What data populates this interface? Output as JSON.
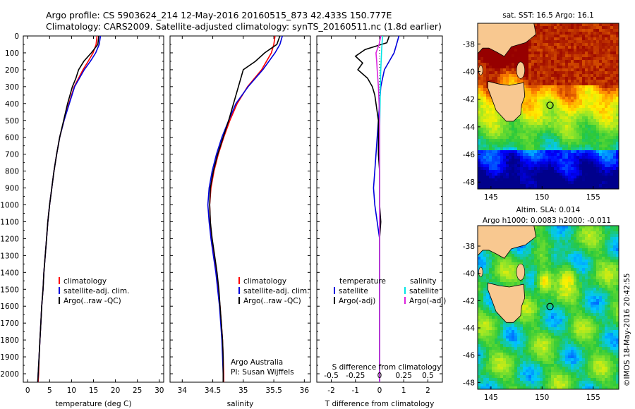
{
  "header": {
    "line1": "Argo profile: CS 5903624_214 12-May-2016 20160515_873 42.433S 150.777E",
    "line2": "Climatology: CARS2009. Satellite-adjusted climatology: synTS_20160511.nc (1.8d earlier)"
  },
  "side_stamp": "©IMOS 18-May-2016 20:42:55",
  "colors": {
    "climatology": "#ff0000",
    "satellite": "#0000dd",
    "argo": "#000000",
    "sat_salinity": "#00e5e5",
    "argo_adj_salinity": "#dd22dd"
  },
  "chart_data": [
    {
      "type": "line",
      "panel": "temperature",
      "xlabel": "temperature (deg C)",
      "xlim": [
        -1,
        31
      ],
      "ylim": [
        2050,
        0
      ],
      "xticks": [
        "0",
        "5",
        "10",
        "15",
        "20",
        "25",
        "30"
      ],
      "yticks": [
        "0",
        "100",
        "200",
        "300",
        "400",
        "500",
        "600",
        "700",
        "800",
        "900",
        "1000",
        "1100",
        "1200",
        "1300",
        "1400",
        "1500",
        "1600",
        "1700",
        "1800",
        "1900",
        "2000"
      ],
      "legend": [
        "climatology",
        "satellite-adj. clim.",
        "Argo(..raw -QC)"
      ],
      "series": [
        {
          "name": "climatology",
          "color": "#ff0000",
          "depth": [
            0,
            50,
            100,
            150,
            200,
            300,
            400,
            500,
            600,
            700,
            800,
            900,
            1000,
            1100,
            1200,
            1300,
            1400,
            1500,
            1600,
            1700,
            1800,
            1900,
            2000,
            2050
          ],
          "value": [
            15.8,
            15.6,
            14.9,
            13.8,
            12.6,
            10.6,
            9.4,
            8.3,
            7.3,
            6.6,
            6.0,
            5.5,
            5.0,
            4.6,
            4.3,
            4.0,
            3.7,
            3.5,
            3.2,
            3.0,
            2.8,
            2.6,
            2.5,
            2.4
          ]
        },
        {
          "name": "satellite-adj. clim.",
          "color": "#0000dd",
          "depth": [
            0,
            50,
            100,
            150,
            200,
            300,
            400,
            500,
            600,
            700,
            800,
            900,
            1000,
            1100,
            1200,
            1300,
            1400,
            1500,
            1600,
            1700,
            1800,
            1900,
            2000,
            2050
          ],
          "value": [
            16.6,
            16.3,
            15.5,
            14.3,
            12.9,
            10.7,
            9.5,
            8.3,
            7.3,
            6.6,
            6.0,
            5.5,
            5.0,
            4.6,
            4.3,
            4.0,
            3.7,
            3.5,
            3.2,
            3.0,
            2.8,
            2.6,
            2.4,
            2.3
          ]
        },
        {
          "name": "Argo(..raw -QC)",
          "color": "#000000",
          "depth": [
            0,
            50,
            100,
            150,
            200,
            250,
            300,
            400,
            500,
            600,
            700,
            800,
            900,
            1000,
            1100,
            1200,
            1300,
            1400,
            1500,
            1600,
            1700,
            1800,
            1900,
            2000,
            2050
          ],
          "value": [
            16.2,
            16.0,
            14.5,
            12.8,
            11.6,
            11.0,
            10.2,
            9.1,
            8.2,
            7.3,
            6.6,
            6.0,
            5.5,
            5.0,
            4.6,
            4.3,
            4.0,
            3.7,
            3.5,
            3.2,
            3.0,
            2.8,
            2.6,
            2.4,
            2.3
          ]
        }
      ]
    },
    {
      "type": "line",
      "panel": "salinity",
      "xlabel": "salinity",
      "xlim": [
        33.8,
        36.1
      ],
      "ylim": [
        2050,
        0
      ],
      "xticks": [
        "34",
        "34.5",
        "35",
        "35.5",
        "36"
      ],
      "legend": [
        "climatology",
        "satellite-adj. clim.",
        "Argo(..raw -QC)"
      ],
      "annotation": [
        "Argo Australia",
        "PI: Susan Wijffels"
      ],
      "series": [
        {
          "name": "climatology",
          "color": "#ff0000",
          "depth": [
            0,
            50,
            100,
            200,
            300,
            400,
            500,
            600,
            700,
            800,
            900,
            1000,
            1100,
            1200,
            1300,
            1400,
            1500,
            1600,
            1700,
            1800,
            1900,
            2000,
            2050
          ],
          "value": [
            35.52,
            35.5,
            35.46,
            35.3,
            35.07,
            34.9,
            34.78,
            34.68,
            34.59,
            34.52,
            34.47,
            34.45,
            34.46,
            34.48,
            34.52,
            34.56,
            34.59,
            34.62,
            34.64,
            34.66,
            34.67,
            34.68,
            34.68
          ]
        },
        {
          "name": "satellite-adj. clim.",
          "color": "#0000dd",
          "depth": [
            0,
            50,
            100,
            200,
            300,
            400,
            500,
            600,
            700,
            800,
            900,
            1000,
            1100,
            1200,
            1300,
            1400,
            1500,
            1600,
            1700,
            1800,
            1900,
            2000,
            2050
          ],
          "value": [
            35.64,
            35.6,
            35.52,
            35.32,
            35.08,
            34.88,
            34.76,
            34.65,
            34.56,
            34.49,
            34.44,
            34.42,
            34.44,
            34.47,
            34.51,
            34.55,
            34.58,
            34.61,
            34.63,
            34.65,
            34.66,
            34.67,
            34.67
          ]
        },
        {
          "name": "Argo(..raw -QC)",
          "color": "#000000",
          "depth": [
            0,
            50,
            100,
            150,
            200,
            300,
            400,
            500,
            600,
            700,
            800,
            900,
            1000,
            1100,
            1200,
            1300,
            1400,
            1500,
            1600,
            1700,
            1800,
            1900,
            2000,
            2050
          ],
          "value": [
            35.6,
            35.55,
            35.35,
            35.2,
            35.0,
            34.92,
            34.84,
            34.76,
            34.67,
            34.58,
            34.51,
            34.46,
            34.45,
            34.46,
            34.49,
            34.53,
            34.57,
            34.6,
            34.62,
            34.64,
            34.66,
            34.67,
            34.67,
            34.67
          ]
        }
      ]
    },
    {
      "type": "line",
      "panel": "difference",
      "xlabel": "T difference from climatology",
      "xlabel_top": "S difference from climatology",
      "xlim": [
        -2.6,
        2.6
      ],
      "ylim": [
        2050,
        0
      ],
      "xticks": [
        "-2",
        "-1",
        "0",
        "1",
        "2"
      ],
      "xticks_top": [
        "-0.5",
        "-0.25",
        "0",
        "0.25",
        "0.5"
      ],
      "legend_temperature": {
        "title": "temperature",
        "items": [
          "satellite",
          "Argo(-adj)"
        ]
      },
      "legend_salinity": {
        "title": "salinity",
        "items": [
          "satellite",
          "Argo(-adj)"
        ]
      },
      "series": [
        {
          "name": "temperature satellite",
          "color": "#0000dd",
          "depth": [
            0,
            50,
            100,
            150,
            200,
            300,
            400,
            500,
            600,
            700,
            800,
            900,
            1000,
            1100,
            1200,
            1400,
            1600,
            1800,
            2000,
            2050
          ],
          "value": [
            0.8,
            0.7,
            0.6,
            0.4,
            0.2,
            0.05,
            0.0,
            -0.05,
            -0.1,
            -0.15,
            -0.2,
            -0.25,
            -0.2,
            -0.1,
            0.0,
            0.0,
            0.0,
            0.0,
            0.0,
            0.0
          ]
        },
        {
          "name": "temperature Argo(-adj)",
          "color": "#000000",
          "depth": [
            0,
            40,
            80,
            120,
            160,
            200,
            250,
            300,
            350,
            400,
            500,
            600,
            700,
            800,
            900,
            1000,
            1100,
            1200,
            1300,
            1400,
            1600,
            1800,
            2000,
            2050
          ],
          "value": [
            0.4,
            0.3,
            -0.6,
            -1.0,
            -0.7,
            -0.9,
            -0.5,
            -0.3,
            -0.2,
            -0.15,
            -0.05,
            -0.05,
            -0.05,
            0.0,
            0.0,
            0.0,
            0.05,
            0.0,
            0.0,
            0.0,
            0.0,
            0.0,
            0.0,
            0.0
          ]
        },
        {
          "name": "salinity satellite",
          "color": "#00e5e5",
          "depth": [
            0,
            50,
            100,
            200,
            300,
            400,
            500,
            600,
            800,
            1000,
            1200,
            1500,
            1800,
            2000,
            2050
          ],
          "value": [
            0.12,
            0.1,
            0.08,
            0.05,
            0.03,
            0.02,
            0.01,
            0.0,
            0.0,
            0.0,
            0.0,
            0.0,
            0.0,
            0.0,
            0.0
          ]
        },
        {
          "name": "salinity Argo(-adj)",
          "color": "#dd22dd",
          "depth": [
            0,
            50,
            100,
            150,
            200,
            300,
            400,
            500,
            600,
            700,
            800,
            900,
            1000,
            1100,
            1200,
            1500,
            1800,
            2000,
            2050
          ],
          "value": [
            0.05,
            -0.02,
            -0.15,
            -0.12,
            -0.1,
            -0.05,
            -0.02,
            0.0,
            0.0,
            0.0,
            0.0,
            0.0,
            0.0,
            0.0,
            0.0,
            0.0,
            0.0,
            0.0,
            0.0
          ]
        }
      ]
    },
    {
      "type": "heatmap",
      "panel": "sst-map",
      "title": "sat. SST: 16.5  Argo: 16.1",
      "xticks": [
        "145",
        "150",
        "155"
      ],
      "yticks": [
        "-38",
        "-40",
        "-42",
        "-44",
        "-46",
        "-48"
      ],
      "xlim": [
        143.7,
        157.5
      ],
      "ylim": [
        -48.5,
        -36.5
      ],
      "marker": {
        "lon": 150.777,
        "lat": -42.433
      }
    },
    {
      "type": "heatmap",
      "panel": "sla-map",
      "title": "Altim. SLA: 0.014",
      "subtitle": "Argo h1000: 0.0083  h2000: -0.011",
      "xticks": [
        "145",
        "150",
        "155"
      ],
      "yticks": [
        "-38",
        "-40",
        "-42",
        "-44",
        "-46",
        "-48"
      ],
      "xlim": [
        143.7,
        157.5
      ],
      "ylim": [
        -48.5,
        -36.5
      ],
      "marker": {
        "lon": 150.777,
        "lat": -42.433
      }
    }
  ]
}
